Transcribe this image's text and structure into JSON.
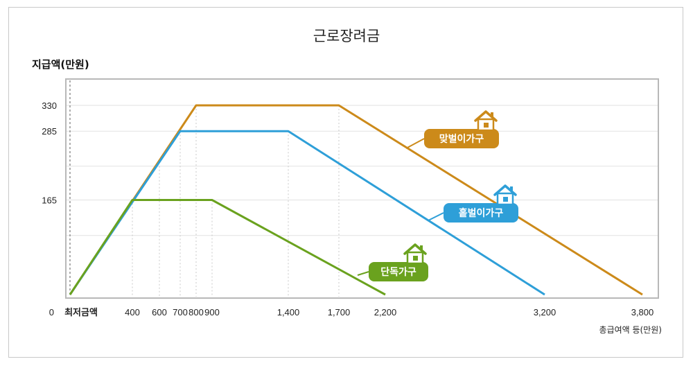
{
  "chart_data": {
    "type": "line",
    "title": "근로장려금",
    "ylabel": "지급액(만원)",
    "xlabel": "총급여액 등(만원)",
    "y_ticks": [
      "0",
      "165",
      "285",
      "330"
    ],
    "x_ticks": [
      "최저금액",
      "400",
      "600",
      "700",
      "800",
      "900",
      "1,400",
      "1,700",
      "2,200",
      "3,200",
      "3,800"
    ],
    "series": [
      {
        "name": "맞벌이가구",
        "color": "#cc8a1a",
        "x": [
          0,
          800,
          1700,
          3800
        ],
        "y": [
          0,
          330,
          330,
          0
        ]
      },
      {
        "name": "홑벌이가구",
        "color": "#2e9fd8",
        "x": [
          0,
          700,
          1400,
          3200
        ],
        "y": [
          0,
          285,
          285,
          0
        ]
      },
      {
        "name": "단독가구",
        "color": "#6aa21e",
        "x": [
          0,
          400,
          900,
          2200
        ],
        "y": [
          0,
          165,
          165,
          0
        ]
      }
    ]
  }
}
